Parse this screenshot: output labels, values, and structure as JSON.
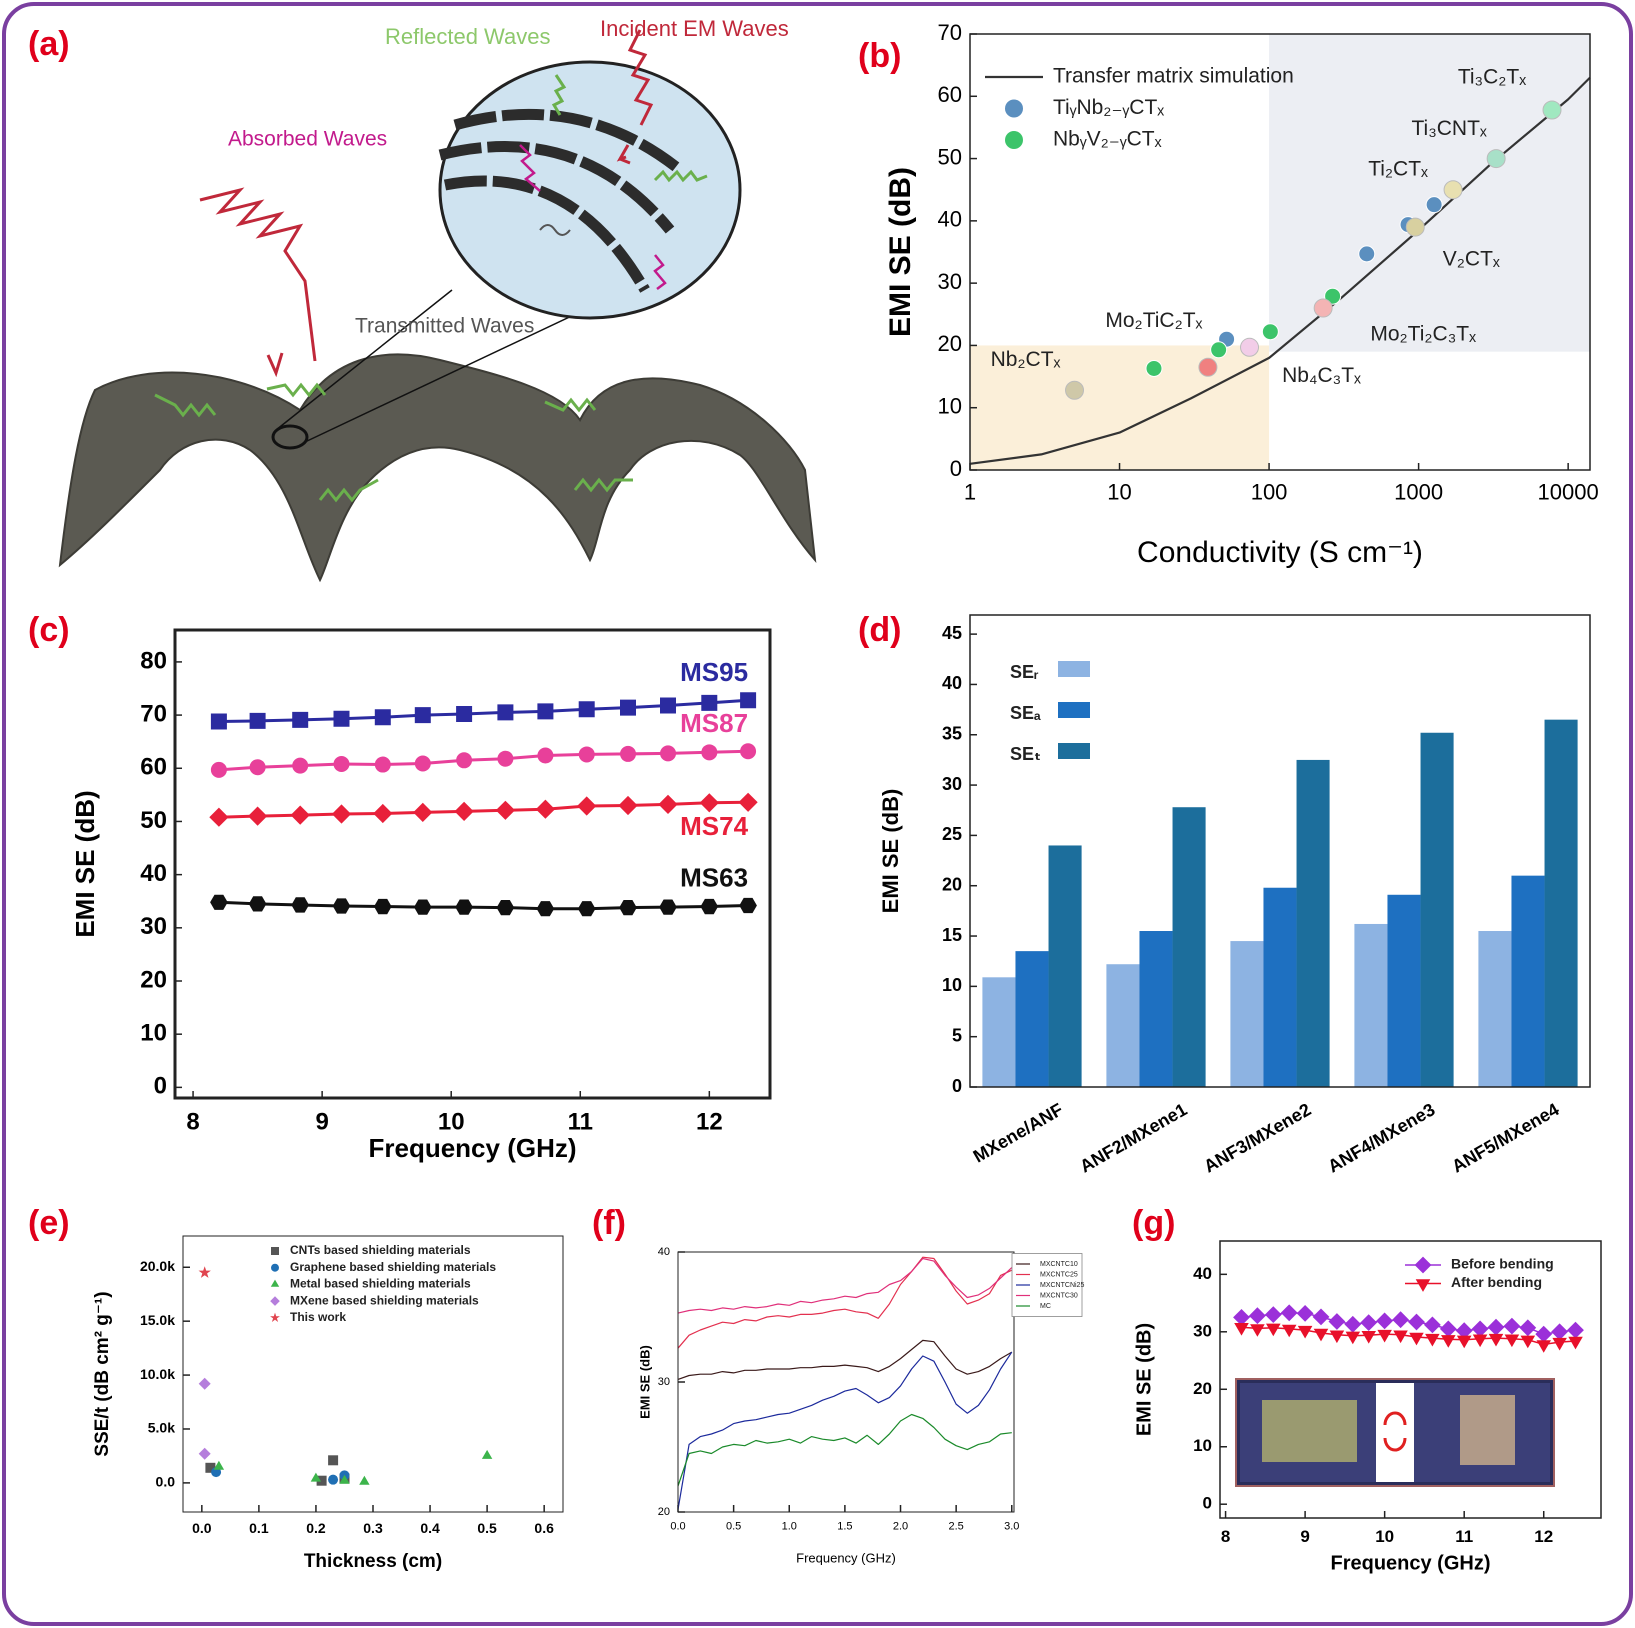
{
  "diagram": {
    "label": "(a)",
    "reflected": "Reflected Waves",
    "incident": "Incident EM Waves",
    "absorbed": "Absorbed Waves",
    "transmitted": "Transmitted Waves"
  },
  "chart_data": [
    {
      "type": "scatter",
      "label": "(b)",
      "xlabel": "Conductivity (S cm⁻¹)",
      "ylabel": "EMI SE (dB)",
      "xscale": "log",
      "xlim": [
        1,
        14000
      ],
      "xticks": [
        1,
        10,
        100,
        1000,
        10000
      ],
      "ylim": [
        0,
        70
      ],
      "yticks": [
        0,
        10,
        20,
        30,
        40,
        50,
        60,
        70
      ],
      "regions": [
        {
          "x": [
            1,
            100
          ],
          "y": [
            0,
            20
          ],
          "color": "#fbefd9"
        },
        {
          "x": [
            100,
            14000
          ],
          "y": [
            19,
            70
          ],
          "color": "#eceef3"
        }
      ],
      "series": [
        {
          "name": "Transfer matrix simulation",
          "kind": "line",
          "color": "#333333",
          "x": [
            1,
            3,
            10,
            30,
            100,
            300,
            1000,
            3000,
            10000,
            14000
          ],
          "values": [
            1,
            2.5,
            6,
            11.5,
            18,
            27.5,
            38.5,
            49,
            59.5,
            63
          ]
        },
        {
          "name": "TiᵧNb₂₋ᵧCTₓ",
          "color": "#5b8fbf",
          "marker": "circle",
          "x": [
            52,
            450,
            850,
            1270
          ],
          "values": [
            21,
            34.7,
            39.4,
            42.6
          ]
        },
        {
          "name": "NbᵧV₂₋ᵧCTₓ",
          "color": "#3cc46a",
          "marker": "circle",
          "x": [
            17,
            46,
            102,
            266
          ],
          "values": [
            16.3,
            19.3,
            22.2,
            27.9
          ]
        }
      ],
      "points": [
        {
          "label": "Nb₂CTₓ",
          "x": 5,
          "y": 12.8,
          "color": "#cfc8a8"
        },
        {
          "label": "Mo₂TiC₂Tₓ",
          "x": 39,
          "y": 16.5,
          "color": "#f08080"
        },
        {
          "label": "Nb₄C₃Tₓ",
          "x": 74,
          "y": 19.7,
          "color": "#f2cde8"
        },
        {
          "label": "Mo₂Ti₂C₃Tₓ",
          "x": 230,
          "y": 26,
          "color": "#f4b4b4"
        },
        {
          "label": "V₂CTₓ",
          "x": 950,
          "y": 39,
          "color": "#d8d0a0"
        },
        {
          "label": "Ti₂CTₓ",
          "x": 1700,
          "y": 45,
          "color": "#e8e0b0"
        },
        {
          "label": "Ti₃CNTₓ",
          "x": 3300,
          "y": 50,
          "color": "#a8e0c8"
        },
        {
          "label": "Ti₃C₂Tₓ",
          "x": 7800,
          "y": 57.8,
          "color": "#a0e8c0"
        }
      ]
    },
    {
      "type": "line",
      "label": "(c)",
      "xlabel": "Frequency (GHz)",
      "ylabel": "EMI SE (dB)",
      "x": [
        8.2,
        8.5,
        8.83,
        9.15,
        9.47,
        9.78,
        10.1,
        10.42,
        10.73,
        11.05,
        11.37,
        11.68,
        12.0,
        12.3
      ],
      "xlim": [
        7.86,
        12.47
      ],
      "xticks": [
        8,
        9,
        10,
        11,
        12
      ],
      "ylim": [
        -2,
        86
      ],
      "yticks": [
        0,
        10,
        20,
        30,
        40,
        50,
        60,
        70,
        80
      ],
      "series": [
        {
          "name": "MS95",
          "color": "#2b2ba0",
          "marker": "square",
          "values": [
            68.8,
            68.9,
            69.1,
            69.3,
            69.6,
            70,
            70.2,
            70.5,
            70.7,
            71.1,
            71.4,
            71.8,
            72.3,
            72.8
          ]
        },
        {
          "name": "MS87",
          "color": "#e8409a",
          "marker": "circle",
          "values": [
            59.7,
            60.2,
            60.5,
            60.8,
            60.7,
            60.9,
            61.5,
            61.8,
            62.4,
            62.6,
            62.7,
            62.8,
            63,
            63.2
          ]
        },
        {
          "name": "MS74",
          "color": "#e8203a",
          "marker": "diamond",
          "values": [
            50.8,
            51,
            51.2,
            51.4,
            51.5,
            51.7,
            51.9,
            52.1,
            52.3,
            52.9,
            53,
            53.2,
            53.5,
            53.6
          ]
        },
        {
          "name": "MS63",
          "color": "#111111",
          "marker": "hexagon",
          "values": [
            34.8,
            34.5,
            34.3,
            34.1,
            34,
            33.9,
            33.9,
            33.8,
            33.6,
            33.6,
            33.8,
            33.9,
            34,
            34.2
          ]
        }
      ]
    },
    {
      "type": "bar",
      "label": "(d)",
      "ylabel": "EMI SE (dB)",
      "categories": [
        "MXene/ANF",
        "ANF2/MXene1",
        "ANF3/MXene2",
        "ANF4/MXene3",
        "ANF5/MXene4"
      ],
      "ylim": [
        0,
        46.9
      ],
      "yticks": [
        0,
        5,
        10,
        15,
        20,
        25,
        30,
        35,
        40,
        45
      ],
      "series": [
        {
          "name": "SEᵣ",
          "color": "#8db3e2",
          "values": [
            10.9,
            12.2,
            14.5,
            16.2,
            15.5
          ]
        },
        {
          "name": "SEₐ",
          "color": "#1e70c1",
          "values": [
            13.5,
            15.5,
            19.8,
            19.1,
            21
          ]
        },
        {
          "name": "SEₜ",
          "color": "#1c6e9c",
          "values": [
            24,
            27.8,
            32.5,
            35.2,
            36.5
          ]
        }
      ]
    },
    {
      "type": "scatter",
      "label": "(e)",
      "xlabel": "Thickness (cm)",
      "ylabel": "SSE/t (dB cm² g⁻¹)",
      "xlim": [
        -0.033,
        0.633
      ],
      "xticks": [
        {
          "value": 0,
          "label": "0.0"
        },
        0.1,
        0.2,
        0.3,
        0.4,
        0.5,
        0.6
      ],
      "ylim": [
        -2700,
        22900
      ],
      "yticks": [
        {
          "value": 0,
          "label": "0.0"
        },
        {
          "value": 5000,
          "label": "5.0k"
        },
        {
          "value": 10000,
          "label": "10.0k"
        },
        {
          "value": 15000,
          "label": "15.0k"
        },
        {
          "value": 20000,
          "label": "20.0k"
        }
      ],
      "series": [
        {
          "name": "CNTs based shielding materials",
          "color": "#555555",
          "marker": "square",
          "x": [
            0.015,
            0.21,
            0.23,
            0.25
          ],
          "values": [
            1400,
            200,
            2100,
            400
          ]
        },
        {
          "name": "Graphene based shielding materials",
          "color": "#1f6fb4",
          "marker": "circle",
          "x": [
            0.025,
            0.23,
            0.25
          ],
          "values": [
            1000,
            300,
            700
          ]
        },
        {
          "name": "Metal based shielding materials",
          "color": "#3cb44b",
          "marker": "triangle",
          "x": [
            0.03,
            0.2,
            0.25,
            0.285,
            0.5
          ],
          "values": [
            1500,
            400,
            200,
            100,
            2500
          ]
        },
        {
          "name": "MXene based shielding materials",
          "color": "#b57edc",
          "marker": "diamond",
          "x": [
            0.005,
            0.005
          ],
          "values": [
            9200,
            2700
          ]
        },
        {
          "name": "This work",
          "color": "#e0454f",
          "marker": "star",
          "x": [
            0.005
          ],
          "values": [
            19500
          ]
        }
      ]
    },
    {
      "type": "line",
      "label": "(f)",
      "xlabel": "Frequency (GHz)",
      "ylabel": "EMI SE (dB)",
      "x": [
        0,
        0.1,
        0.2,
        0.3,
        0.4,
        0.5,
        0.6,
        0.7,
        0.8,
        0.9,
        1,
        1.1,
        1.2,
        1.3,
        1.4,
        1.5,
        1.6,
        1.7,
        1.8,
        1.9,
        2,
        2.1,
        2.2,
        2.3,
        2.4,
        2.5,
        2.6,
        2.7,
        2.8,
        2.9,
        3
      ],
      "xlim": [
        0,
        3.02
      ],
      "xticks": [
        {
          "value": 0,
          "label": "0.0"
        },
        0.5,
        {
          "value": 1,
          "label": "1.0"
        },
        1.5,
        {
          "value": 2,
          "label": "2.0"
        },
        2.5,
        {
          "value": 3,
          "label": "3.0"
        }
      ],
      "ylim": [
        20,
        40
      ],
      "yticks": [
        20,
        30,
        40
      ],
      "series": [
        {
          "name": "MXCNTC10",
          "color": "#3a1a1a",
          "values": [
            30.2,
            30.5,
            30.6,
            30.6,
            30.8,
            30.7,
            30.9,
            30.9,
            31,
            31,
            31,
            31.1,
            31.1,
            31.2,
            31.2,
            31.3,
            31.2,
            31.1,
            30.8,
            31.2,
            31.8,
            32.5,
            33.2,
            33.1,
            32,
            31,
            30.6,
            30.8,
            31.2,
            31.8,
            32.3
          ]
        },
        {
          "name": "MXCNTC25",
          "color": "#e3304f",
          "values": [
            32.6,
            33.6,
            34,
            34.3,
            34.6,
            34.5,
            34.8,
            34.7,
            35,
            35.1,
            35,
            35.2,
            35.2,
            35.3,
            35.5,
            35.6,
            35.4,
            35.3,
            34.9,
            36,
            37.5,
            38.5,
            39.6,
            39.5,
            38.3,
            37,
            36,
            36.3,
            36.8,
            38.2,
            38.6
          ]
        },
        {
          "name": "MXCNTCNi25",
          "color": "#1c2a9c",
          "values": [
            20.2,
            25.2,
            25.8,
            26,
            26.3,
            26.8,
            27,
            27.1,
            27.3,
            27.5,
            27.6,
            27.9,
            28.2,
            28.6,
            28.9,
            29.3,
            29.5,
            29,
            28.4,
            28.8,
            29.7,
            31,
            32,
            31.6,
            30,
            28.3,
            27.6,
            28.2,
            29.4,
            31,
            32.3
          ]
        },
        {
          "name": "MXCNTC30",
          "color": "#e0307a",
          "values": [
            35.3,
            35.5,
            35.6,
            35.5,
            35.7,
            35.6,
            35.8,
            35.7,
            35.8,
            36,
            35.9,
            36.2,
            36.1,
            36.3,
            36.4,
            36.6,
            36.5,
            36.8,
            36.9,
            37.5,
            37.8,
            38.5,
            39.5,
            39.3,
            38.2,
            37.3,
            36.5,
            36.7,
            37.2,
            38,
            38.8
          ]
        },
        {
          "name": "MC",
          "color": "#1a8a2a",
          "values": [
            22,
            24.5,
            24.7,
            24.5,
            25,
            25.2,
            25.1,
            25.5,
            25.3,
            25.4,
            25.6,
            25.3,
            25.8,
            25.6,
            25.5,
            25.7,
            25.3,
            25.9,
            25.2,
            26,
            27,
            27.5,
            27.2,
            26.5,
            25.6,
            25.1,
            24.8,
            25.2,
            25.4,
            26,
            26.1
          ]
        }
      ]
    },
    {
      "type": "line",
      "label": "(g)",
      "xlabel": "Frequency (GHz)",
      "ylabel": "EMI SE (dB)",
      "x": [
        8.2,
        8.4,
        8.6,
        8.8,
        9,
        9.2,
        9.4,
        9.6,
        9.8,
        10,
        10.2,
        10.4,
        10.6,
        10.8,
        11,
        11.2,
        11.4,
        11.6,
        11.8,
        12,
        12.2,
        12.4
      ],
      "xlim": [
        7.93,
        12.72
      ],
      "xticks": [
        8,
        9,
        10,
        11,
        12
      ],
      "ylim": [
        -2.4,
        45.8
      ],
      "yticks": [
        0,
        10,
        20,
        30,
        40
      ],
      "series": [
        {
          "name": "Before bending",
          "color": "#9b30d9",
          "marker": "diamond",
          "values": [
            32.5,
            32.8,
            33,
            33.3,
            33.2,
            32.6,
            31.8,
            31.3,
            31.6,
            31.9,
            32.1,
            31.7,
            31.2,
            30.5,
            30.2,
            30.5,
            30.8,
            31,
            30.7,
            29.6,
            30,
            30.3
          ]
        },
        {
          "name": "After bending",
          "color": "#e8102a",
          "marker": "triangle-down",
          "values": [
            30.8,
            30.6,
            30.7,
            30.5,
            30.3,
            29.8,
            29.5,
            29.3,
            29.4,
            29.6,
            29.5,
            29.1,
            28.9,
            28.7,
            28.6,
            28.8,
            28.9,
            28.8,
            28.6,
            27.8,
            28.2,
            28.4
          ]
        }
      ]
    }
  ]
}
